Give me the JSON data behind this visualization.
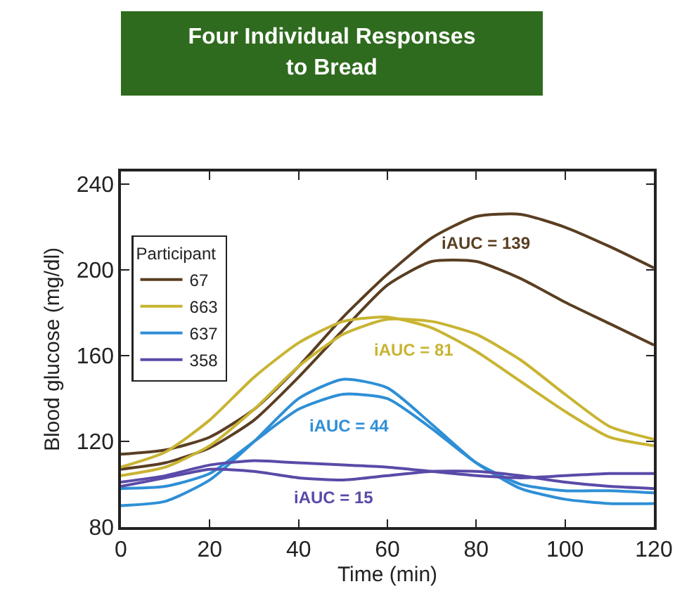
{
  "chart_data": {
    "type": "line",
    "title": "Four Individual Responses to Bread",
    "xlabel": "Time (min)",
    "ylabel": "Blood glucose (mg/dl)",
    "legend_title": "Participant",
    "legend": "top left",
    "grid": false,
    "marker": "none",
    "line_style": "solid",
    "x": [
      0,
      10,
      20,
      30,
      40,
      50,
      60,
      70,
      80,
      90,
      100,
      110,
      120
    ],
    "xlim": [
      0,
      120
    ],
    "xticks": [
      0,
      20,
      40,
      60,
      80,
      100,
      120
    ],
    "ylim": [
      80,
      246
    ],
    "yticks": [
      80,
      120,
      160,
      200,
      240
    ],
    "series": [
      {
        "name": "67",
        "color": "#5a3e22",
        "values": [
          114,
          116,
          122,
          135,
          155,
          178,
          198,
          215,
          225,
          226,
          220,
          211,
          201
        ]
      },
      {
        "color": "#5a3e22",
        "values": [
          107,
          110,
          117,
          130,
          150,
          172,
          193,
          204,
          204,
          196,
          185,
          175,
          165
        ]
      },
      {
        "name": "663",
        "color": "#c8b432",
        "values": [
          108,
          115,
          130,
          150,
          166,
          176,
          178,
          173,
          162,
          148,
          134,
          122,
          118
        ]
      },
      {
        "color": "#c8b432",
        "values": [
          104,
          108,
          118,
          135,
          155,
          170,
          177,
          176,
          170,
          158,
          142,
          127,
          121
        ]
      },
      {
        "name": "637",
        "color": "#2e8fd6",
        "values": [
          90,
          92,
          102,
          120,
          140,
          149,
          145,
          128,
          110,
          98,
          93,
          91,
          91
        ]
      },
      {
        "color": "#2e8fd6",
        "values": [
          98,
          99,
          105,
          120,
          135,
          142,
          140,
          126,
          110,
          100,
          97,
          97,
          96
        ]
      },
      {
        "name": "358",
        "color": "#5a4aa8",
        "values": [
          101,
          104,
          109,
          111,
          110,
          109,
          108,
          106,
          104,
          103,
          104,
          105,
          105
        ]
      },
      {
        "color": "#5a4aa8",
        "values": [
          99,
          103,
          107,
          106,
          103,
          102,
          104,
          106,
          106,
          104,
          101,
          99,
          98
        ]
      }
    ],
    "annotations": [
      "iAUC = 139",
      "iAUC = 81",
      "iAUC = 44",
      "iAUC = 15"
    ]
  }
}
